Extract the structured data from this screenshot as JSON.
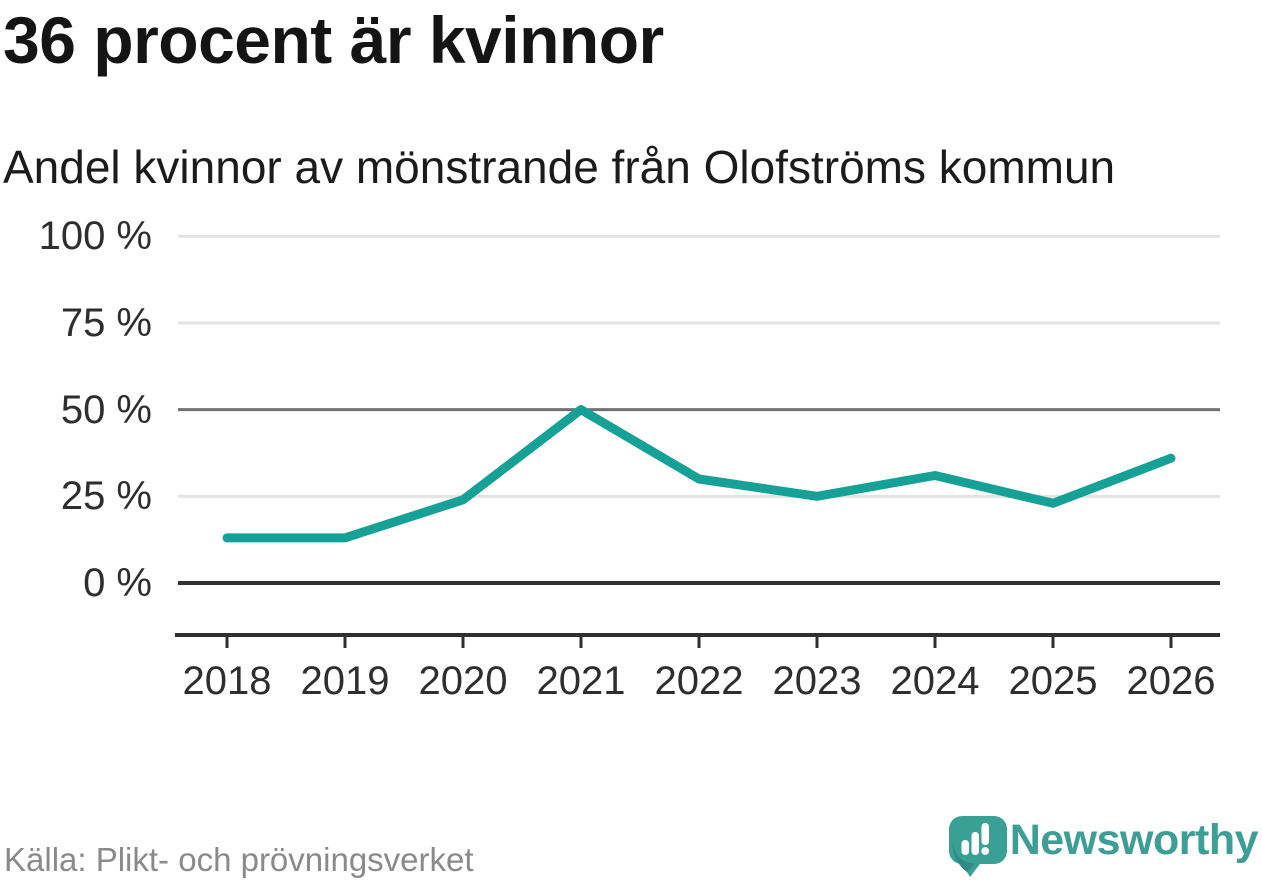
{
  "header": {
    "title": "36 procent är kvinnor",
    "subtitle": "Andel kvinnor av mönstrande från Olofströms kommun"
  },
  "chart_data": {
    "type": "line",
    "title": "36 procent är kvinnor",
    "subtitle": "Andel kvinnor av mönstrande från Olofströms kommun",
    "x": [
      2018,
      2019,
      2020,
      2021,
      2022,
      2023,
      2024,
      2025,
      2026
    ],
    "series": [
      {
        "name": "Andel kvinnor av mönstrande",
        "values": [
          13,
          13,
          24,
          50,
          30,
          25,
          31,
          23,
          36
        ]
      }
    ],
    "unit": "%",
    "ylim": [
      0,
      100
    ],
    "yticks": [
      0,
      25,
      50,
      75,
      100
    ],
    "ytick_labels": [
      "0 %",
      "25 %",
      "50 %",
      "75 %",
      "100 %"
    ],
    "grid": true,
    "legend": "none"
  },
  "footer": {
    "source": "Källa: Plikt- och prövningsverket",
    "brand": "Newsworthy"
  },
  "colors": {
    "accent": "#16a196",
    "logo": "#3aa096",
    "logo_dark": "#2e8b85",
    "logo_text": "#3d9e95",
    "grid_light": "#e3e3e3",
    "grid_mid": "#717171",
    "grid_zero": "#333333",
    "axis": "#2f2f2f",
    "text": "#191919",
    "muted": "#8a8a8a"
  }
}
